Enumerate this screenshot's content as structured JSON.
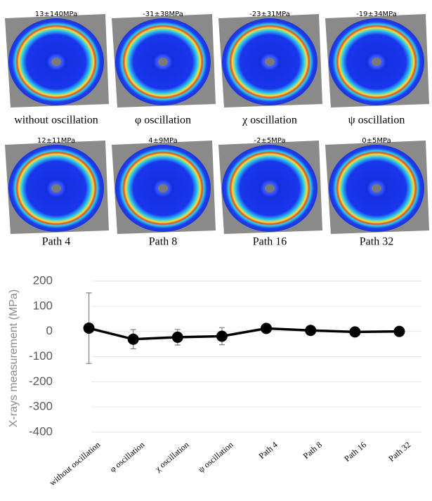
{
  "panels": [
    {
      "stress": "13±140MPa",
      "label": "without oscillation"
    },
    {
      "stress": "-31±38MPa",
      "label": "φ oscillation"
    },
    {
      "stress": "-23±31MPa",
      "label": "χ oscillation"
    },
    {
      "stress": "-19±34MPa",
      "label": "ψ oscillation"
    },
    {
      "stress": "12±11MPa",
      "label": "Path 4"
    },
    {
      "stress": "4±9MPa",
      "label": "Path 8"
    },
    {
      "stress": "-2±5MPa",
      "label": "Path 16"
    },
    {
      "stress": "0±5MPa",
      "label": "Path 32"
    }
  ],
  "chart_data": {
    "type": "line",
    "y_label": "X-rays measurement (MPa)",
    "categories": [
      "without oscillation",
      "φ oscillation",
      "χ oscillation",
      "ψ oscillation",
      "Path 4",
      "Path 8",
      "Path 16",
      "Path 32"
    ],
    "series": [
      {
        "color": "#000000",
        "error_color": "#7f7f7f",
        "values": [
          13,
          -31,
          -23,
          -19,
          12,
          4,
          -2,
          0
        ],
        "errors": [
          140,
          38,
          31,
          34,
          11,
          9,
          5,
          5
        ]
      }
    ],
    "ylim": [
      -400,
      200
    ],
    "yticks": [
      -400,
      -300,
      -200,
      -100,
      0,
      100,
      200
    ],
    "grid": true
  }
}
